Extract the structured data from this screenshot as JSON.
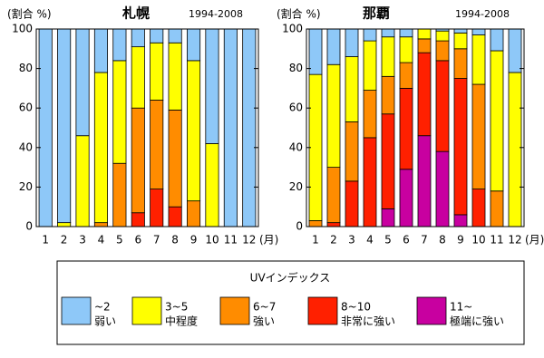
{
  "chart_data": [
    {
      "type": "bar",
      "stacked": true,
      "title": "札幌",
      "subtitle": "1994-2008",
      "y_label": "(割合 %)",
      "x_unit": "(月)",
      "categories": [
        "1",
        "2",
        "3",
        "4",
        "5",
        "6",
        "7",
        "8",
        "9",
        "10",
        "11",
        "12"
      ],
      "ylim": [
        0,
        100
      ],
      "yticks": [
        0,
        20,
        40,
        60,
        80,
        100
      ],
      "series": [
        {
          "values": [
            100,
            98,
            54,
            22,
            16,
            9,
            7,
            7,
            16,
            58,
            100,
            100
          ]
        },
        {
          "values": [
            0,
            2,
            46,
            76,
            52,
            31,
            29,
            34,
            71,
            42,
            0,
            0
          ]
        },
        {
          "values": [
            0,
            0,
            0,
            2,
            32,
            53,
            45,
            49,
            13,
            0,
            0,
            0
          ]
        },
        {
          "values": [
            0,
            0,
            0,
            0,
            0,
            7,
            19,
            10,
            0,
            0,
            0,
            0
          ]
        },
        {
          "values": [
            0,
            0,
            0,
            0,
            0,
            0,
            0,
            0,
            0,
            0,
            0,
            0
          ]
        }
      ]
    },
    {
      "type": "bar",
      "stacked": true,
      "title": "那覇",
      "subtitle": "1994-2008",
      "y_label": "(割合 %)",
      "x_unit": "(月)",
      "categories": [
        "1",
        "2",
        "3",
        "4",
        "5",
        "6",
        "7",
        "8",
        "9",
        "10",
        "11",
        "12"
      ],
      "ylim": [
        0,
        100
      ],
      "yticks": [
        0,
        20,
        40,
        60,
        80,
        100
      ],
      "series": [
        {
          "values": [
            23,
            18,
            14,
            6,
            4,
            4,
            0,
            1,
            2,
            3,
            11,
            22
          ]
        },
        {
          "values": [
            74,
            52,
            33,
            25,
            20,
            13,
            5,
            5,
            8,
            25,
            71,
            78
          ]
        },
        {
          "values": [
            3,
            28,
            30,
            24,
            19,
            13,
            7,
            10,
            15,
            53,
            18,
            0
          ]
        },
        {
          "values": [
            0,
            2,
            23,
            45,
            48,
            41,
            42,
            46,
            69,
            19,
            0,
            0
          ]
        },
        {
          "values": [
            0,
            0,
            0,
            0,
            9,
            29,
            46,
            38,
            6,
            0,
            0,
            0
          ]
        }
      ]
    }
  ],
  "legend": {
    "title": "UVインデックス",
    "items": [
      {
        "name": "~2",
        "label": "弱い",
        "color": "#8ec8f8"
      },
      {
        "name": "3~5",
        "label": "中程度",
        "color": "#ffff00"
      },
      {
        "name": "6~7",
        "label": "強い",
        "color": "#ff8c00"
      },
      {
        "name": "8~10",
        "label": "非常に強い",
        "color": "#ff2000"
      },
      {
        "name": "11~",
        "label": "極端に強い",
        "color": "#c800a0"
      }
    ]
  }
}
